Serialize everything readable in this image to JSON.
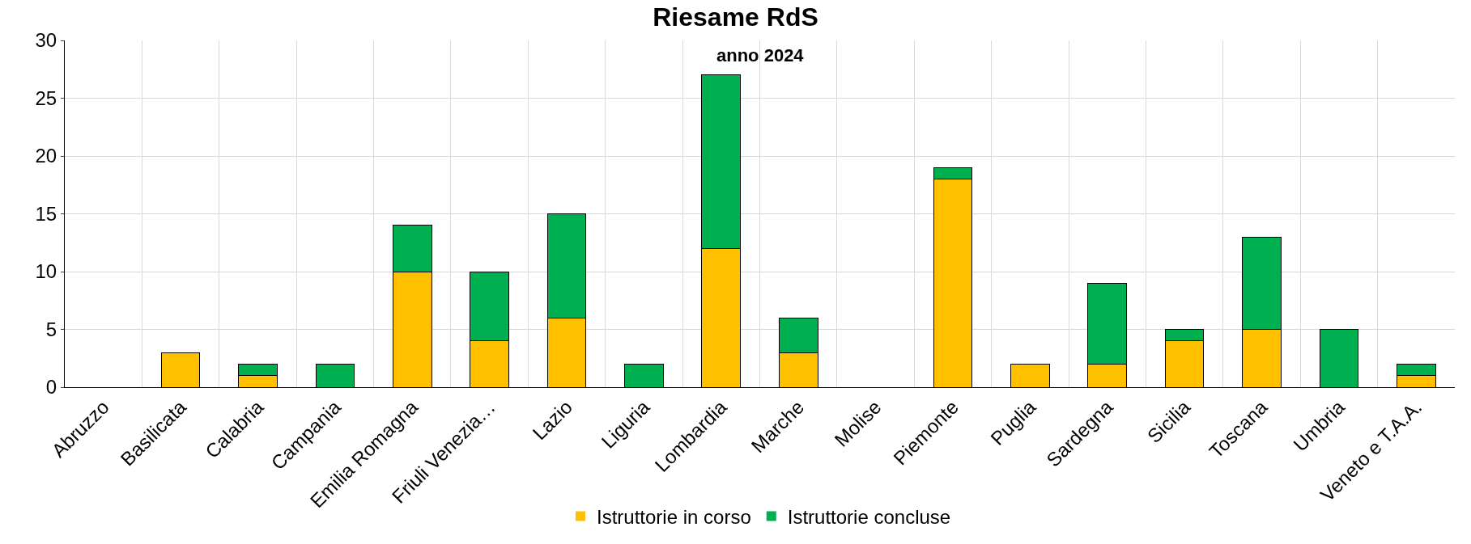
{
  "chart_data": {
    "type": "bar",
    "title": "Riesame RdS",
    "subtitle": "anno 2024",
    "categories": [
      "Abruzzo",
      "Basilicata",
      "Calabria",
      "Campania",
      "Emilia Romagna",
      "Friuli Venezia…",
      "Lazio",
      "Liguria",
      "Lombardia",
      "Marche",
      "Molise",
      "Piemonte",
      "Puglia",
      "Sardegna",
      "Sicilia",
      "Toscana",
      "Umbria",
      "Veneto e T.A.A."
    ],
    "series": [
      {
        "name": "Istruttorie in corso",
        "color": "#ffc000",
        "values": [
          0,
          3,
          1,
          0,
          10,
          4,
          6,
          0,
          12,
          3,
          0,
          18,
          2,
          2,
          4,
          5,
          0,
          1
        ]
      },
      {
        "name": "Istruttorie concluse",
        "color": "#00b050",
        "values": [
          0,
          0,
          1,
          2,
          4,
          6,
          9,
          2,
          15,
          3,
          0,
          1,
          0,
          7,
          1,
          8,
          5,
          1
        ]
      }
    ],
    "stacked": true,
    "ylim": [
      0,
      30
    ],
    "yticks": [
      0,
      5,
      10,
      15,
      20,
      25,
      30
    ],
    "grid": true,
    "legend": "bottom"
  }
}
